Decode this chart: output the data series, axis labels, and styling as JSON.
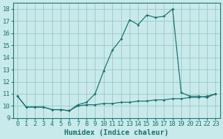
{
  "xlabel": "Humidex (Indice chaleur)",
  "background_color": "#c8eaea",
  "grid_color": "#a0c8c8",
  "line_color": "#1a7070",
  "xlim": [
    -0.5,
    23.5
  ],
  "ylim": [
    9,
    18.5
  ],
  "yticks": [
    9,
    10,
    11,
    12,
    13,
    14,
    15,
    16,
    17,
    18
  ],
  "xticks": [
    0,
    1,
    2,
    3,
    4,
    5,
    6,
    7,
    8,
    9,
    10,
    11,
    12,
    13,
    14,
    15,
    16,
    17,
    18,
    19,
    20,
    21,
    22,
    23
  ],
  "line1_x": [
    0,
    1,
    2,
    3,
    4,
    5,
    6,
    7,
    8,
    9,
    10,
    11,
    12,
    13,
    14,
    15,
    16,
    17,
    18,
    19,
    20,
    21,
    22,
    23
  ],
  "line1_y": [
    10.8,
    9.9,
    9.9,
    9.9,
    9.7,
    9.7,
    9.6,
    10.1,
    10.3,
    11.0,
    12.9,
    14.6,
    15.5,
    17.1,
    16.7,
    17.5,
    17.3,
    17.4,
    18.0,
    11.1,
    10.8,
    10.8,
    10.7,
    11.0
  ],
  "line2_x": [
    0,
    1,
    2,
    3,
    4,
    5,
    6,
    7,
    8,
    9,
    10,
    11,
    12,
    13,
    14,
    15,
    16,
    17,
    18,
    19,
    20,
    21,
    22,
    23
  ],
  "line2_y": [
    10.8,
    9.9,
    9.9,
    9.9,
    9.7,
    9.7,
    9.6,
    10.0,
    10.1,
    10.1,
    10.2,
    10.2,
    10.3,
    10.3,
    10.4,
    10.4,
    10.5,
    10.5,
    10.6,
    10.6,
    10.7,
    10.7,
    10.8,
    11.0
  ],
  "font_color": "#1a7070",
  "tick_fontsize": 6.5,
  "label_fontsize": 7.5
}
